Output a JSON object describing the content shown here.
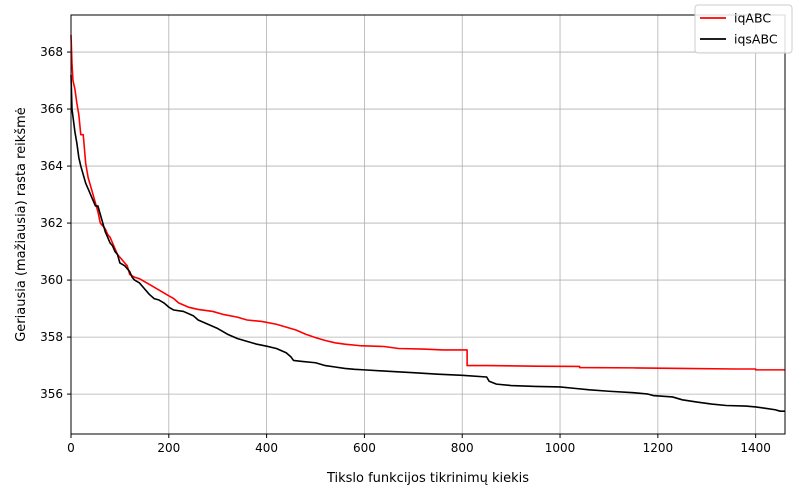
{
  "chart_data": {
    "type": "line",
    "title": "",
    "xlabel": "Tikslo funkcijos tikrinimų kiekis",
    "ylabel": "Geriausia (mažiausia) rasta reikšmė",
    "xlim": [
      0,
      1460
    ],
    "ylim": [
      354.6,
      369.3
    ],
    "x_ticks": [
      0,
      200,
      400,
      600,
      800,
      1000,
      1200,
      1400
    ],
    "y_ticks": [
      356,
      358,
      360,
      362,
      364,
      366,
      368
    ],
    "grid": true,
    "legend_position": "top-right",
    "series": [
      {
        "name": "iqABC",
        "color": "#ff0000",
        "points": [
          [
            0,
            368.6
          ],
          [
            2,
            367.6
          ],
          [
            4,
            367.0
          ],
          [
            8,
            366.7
          ],
          [
            12,
            366.2
          ],
          [
            16,
            365.8
          ],
          [
            20,
            365.1
          ],
          [
            25,
            365.1
          ],
          [
            30,
            364.1
          ],
          [
            35,
            363.6
          ],
          [
            40,
            363.3
          ],
          [
            45,
            363.0
          ],
          [
            50,
            362.7
          ],
          [
            55,
            362.4
          ],
          [
            60,
            362.0
          ],
          [
            65,
            361.9
          ],
          [
            70,
            361.8
          ],
          [
            75,
            361.6
          ],
          [
            80,
            361.5
          ],
          [
            85,
            361.3
          ],
          [
            90,
            361.1
          ],
          [
            95,
            360.9
          ],
          [
            100,
            360.8
          ],
          [
            105,
            360.7
          ],
          [
            110,
            360.6
          ],
          [
            115,
            360.5
          ],
          [
            120,
            360.2
          ],
          [
            130,
            360.1
          ],
          [
            140,
            360.05
          ],
          [
            150,
            359.95
          ],
          [
            160,
            359.85
          ],
          [
            170,
            359.75
          ],
          [
            180,
            359.65
          ],
          [
            190,
            359.55
          ],
          [
            200,
            359.45
          ],
          [
            210,
            359.35
          ],
          [
            220,
            359.2
          ],
          [
            240,
            359.05
          ],
          [
            260,
            358.97
          ],
          [
            290,
            358.9
          ],
          [
            310,
            358.8
          ],
          [
            340,
            358.7
          ],
          [
            360,
            358.6
          ],
          [
            390,
            358.55
          ],
          [
            420,
            358.45
          ],
          [
            440,
            358.35
          ],
          [
            460,
            358.25
          ],
          [
            480,
            358.1
          ],
          [
            500,
            357.98
          ],
          [
            520,
            357.88
          ],
          [
            540,
            357.8
          ],
          [
            560,
            357.75
          ],
          [
            590,
            357.7
          ],
          [
            640,
            357.67
          ],
          [
            670,
            357.6
          ],
          [
            720,
            357.58
          ],
          [
            760,
            357.55
          ],
          [
            810,
            357.55
          ],
          [
            810,
            357.0
          ],
          [
            850,
            357.0
          ],
          [
            950,
            356.98
          ],
          [
            1040,
            356.97
          ],
          [
            1040,
            356.93
          ],
          [
            1150,
            356.92
          ],
          [
            1250,
            356.9
          ],
          [
            1360,
            356.88
          ],
          [
            1400,
            356.88
          ],
          [
            1400,
            356.85
          ],
          [
            1460,
            356.85
          ]
        ]
      },
      {
        "name": "iqsABC",
        "color": "#000000",
        "points": [
          [
            0,
            367.2
          ],
          [
            2,
            366.0
          ],
          [
            5,
            365.6
          ],
          [
            8,
            365.2
          ],
          [
            12,
            364.8
          ],
          [
            16,
            364.3
          ],
          [
            20,
            364.0
          ],
          [
            25,
            363.7
          ],
          [
            30,
            363.4
          ],
          [
            35,
            363.2
          ],
          [
            40,
            363.0
          ],
          [
            45,
            362.8
          ],
          [
            50,
            362.6
          ],
          [
            55,
            362.6
          ],
          [
            60,
            362.3
          ],
          [
            65,
            362.0
          ],
          [
            70,
            361.7
          ],
          [
            75,
            361.5
          ],
          [
            80,
            361.3
          ],
          [
            85,
            361.2
          ],
          [
            90,
            361.0
          ],
          [
            95,
            360.9
          ],
          [
            100,
            360.6
          ],
          [
            110,
            360.5
          ],
          [
            120,
            360.3
          ],
          [
            125,
            360.1
          ],
          [
            130,
            360.0
          ],
          [
            140,
            359.9
          ],
          [
            150,
            359.7
          ],
          [
            160,
            359.5
          ],
          [
            170,
            359.35
          ],
          [
            180,
            359.3
          ],
          [
            190,
            359.2
          ],
          [
            200,
            359.05
          ],
          [
            210,
            358.95
          ],
          [
            230,
            358.9
          ],
          [
            250,
            358.75
          ],
          [
            260,
            358.6
          ],
          [
            280,
            358.45
          ],
          [
            300,
            358.3
          ],
          [
            320,
            358.1
          ],
          [
            340,
            357.95
          ],
          [
            360,
            357.85
          ],
          [
            380,
            357.75
          ],
          [
            400,
            357.68
          ],
          [
            420,
            357.6
          ],
          [
            440,
            357.45
          ],
          [
            450,
            357.3
          ],
          [
            455,
            357.18
          ],
          [
            470,
            357.15
          ],
          [
            500,
            357.1
          ],
          [
            520,
            357.0
          ],
          [
            540,
            356.95
          ],
          [
            560,
            356.9
          ],
          [
            580,
            356.87
          ],
          [
            600,
            356.85
          ],
          [
            650,
            356.8
          ],
          [
            700,
            356.75
          ],
          [
            750,
            356.7
          ],
          [
            800,
            356.66
          ],
          [
            850,
            356.6
          ],
          [
            855,
            356.45
          ],
          [
            870,
            356.35
          ],
          [
            900,
            356.3
          ],
          [
            950,
            356.27
          ],
          [
            1000,
            356.25
          ],
          [
            1030,
            356.2
          ],
          [
            1060,
            356.15
          ],
          [
            1100,
            356.1
          ],
          [
            1150,
            356.05
          ],
          [
            1180,
            356.0
          ],
          [
            1190,
            355.95
          ],
          [
            1230,
            355.9
          ],
          [
            1250,
            355.8
          ],
          [
            1280,
            355.72
          ],
          [
            1310,
            355.65
          ],
          [
            1340,
            355.6
          ],
          [
            1380,
            355.58
          ],
          [
            1400,
            355.55
          ],
          [
            1420,
            355.5
          ],
          [
            1440,
            355.45
          ],
          [
            1450,
            355.4
          ],
          [
            1460,
            355.4
          ]
        ]
      }
    ]
  }
}
